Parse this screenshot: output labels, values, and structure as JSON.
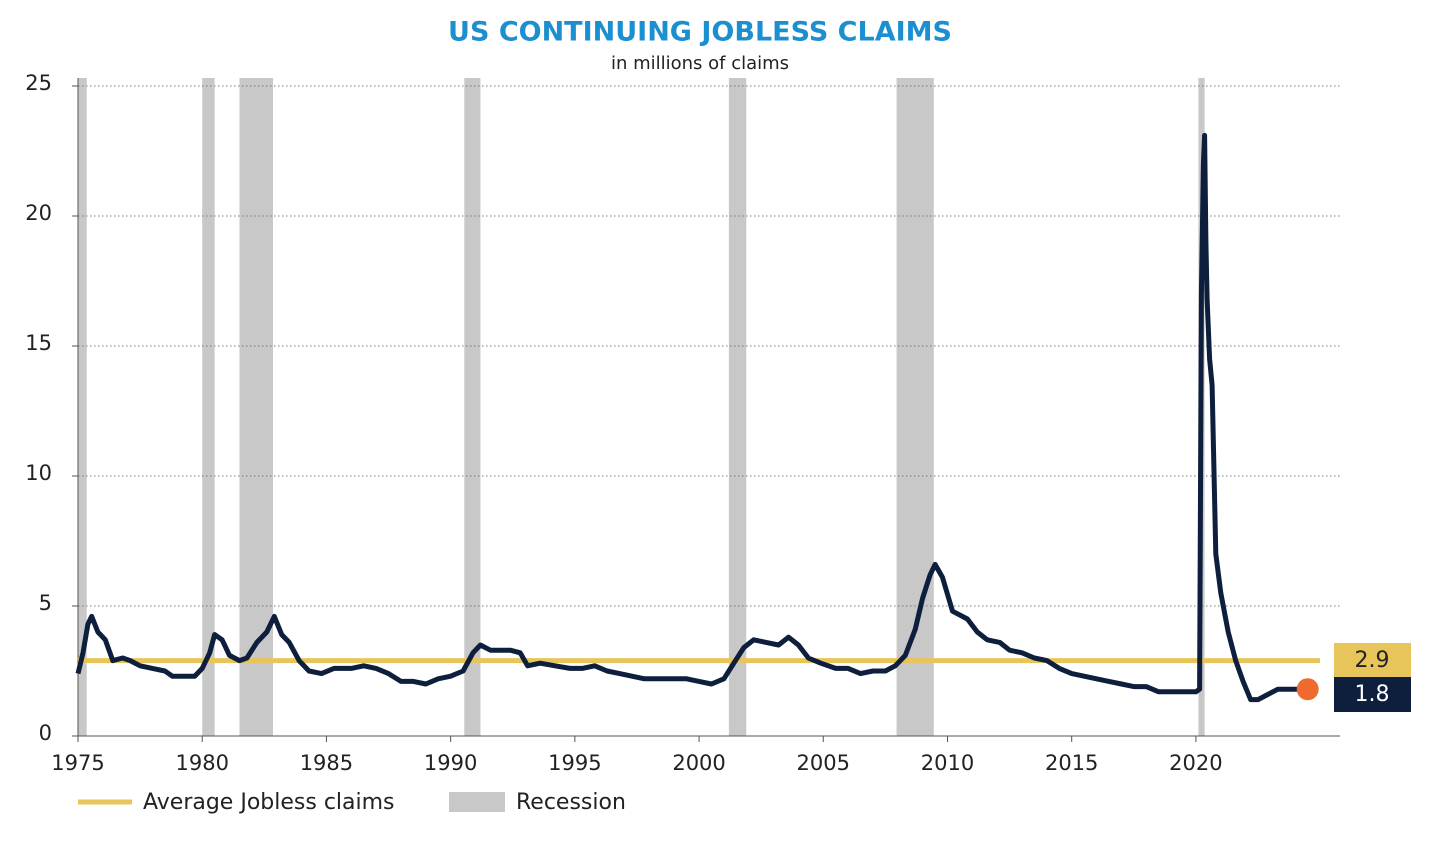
{
  "chart_data": {
    "type": "line",
    "title": "US CONTINUING JOBLESS CLAIMS",
    "subtitle": "in millions of claims",
    "color": "#0d1f3c",
    "marker_color": "#ee6a2f",
    "x": [
      1975.0,
      1975.2,
      1975.4,
      1975.55,
      1975.8,
      1976.1,
      1976.4,
      1976.8,
      1977.1,
      1977.5,
      1978.0,
      1978.5,
      1978.8,
      1979.3,
      1979.7,
      1980.0,
      1980.3,
      1980.5,
      1980.8,
      1981.1,
      1981.5,
      1981.8,
      1982.2,
      1982.6,
      1982.9,
      1983.2,
      1983.5,
      1983.9,
      1984.3,
      1984.8,
      1985.3,
      1986.0,
      1986.5,
      1987.0,
      1987.5,
      1988.0,
      1988.5,
      1989.0,
      1989.5,
      1990.0,
      1990.5,
      1990.9,
      1991.2,
      1991.6,
      1992.0,
      1992.4,
      1992.8,
      1993.1,
      1993.6,
      1994.2,
      1994.8,
      1995.3,
      1995.8,
      1996.3,
      1996.8,
      1997.3,
      1997.8,
      1998.5,
      1999.0,
      1999.5,
      2000.0,
      2000.5,
      2001.0,
      2001.4,
      2001.8,
      2002.2,
      2002.7,
      2003.2,
      2003.6,
      2004.0,
      2004.4,
      2004.9,
      2005.5,
      2006.0,
      2006.5,
      2007.0,
      2007.5,
      2007.9,
      2008.3,
      2008.7,
      2009.0,
      2009.3,
      2009.5,
      2009.8,
      2010.2,
      2010.8,
      2011.2,
      2011.6,
      2012.1,
      2012.5,
      2013.0,
      2013.5,
      2014.0,
      2014.5,
      2015.0,
      2015.5,
      2016.0,
      2016.5,
      2017.0,
      2017.5,
      2018.0,
      2018.5,
      2019.0,
      2019.5,
      2020.0,
      2020.15,
      2020.22,
      2020.3,
      2020.35,
      2020.4,
      2020.45,
      2020.55,
      2020.65,
      2020.8,
      2021.0,
      2021.3,
      2021.6,
      2021.9,
      2022.2,
      2022.5,
      2022.9,
      2023.3,
      2023.8,
      2024.3,
      2024.5
    ],
    "values": [
      2.4,
      3.2,
      4.3,
      4.6,
      4.0,
      3.7,
      2.9,
      3.0,
      2.9,
      2.7,
      2.6,
      2.5,
      2.3,
      2.3,
      2.3,
      2.6,
      3.2,
      3.9,
      3.7,
      3.1,
      2.9,
      3.0,
      3.6,
      4.0,
      4.6,
      3.9,
      3.6,
      2.9,
      2.5,
      2.4,
      2.6,
      2.6,
      2.7,
      2.6,
      2.4,
      2.1,
      2.1,
      2.0,
      2.2,
      2.3,
      2.5,
      3.2,
      3.5,
      3.3,
      3.3,
      3.3,
      3.2,
      2.7,
      2.8,
      2.7,
      2.6,
      2.6,
      2.7,
      2.5,
      2.4,
      2.3,
      2.2,
      2.2,
      2.2,
      2.2,
      2.1,
      2.0,
      2.2,
      2.8,
      3.4,
      3.7,
      3.6,
      3.5,
      3.8,
      3.5,
      3.0,
      2.8,
      2.6,
      2.6,
      2.4,
      2.5,
      2.5,
      2.7,
      3.1,
      4.1,
      5.3,
      6.2,
      6.6,
      6.1,
      4.8,
      4.5,
      4.0,
      3.7,
      3.6,
      3.3,
      3.2,
      3.0,
      2.9,
      2.6,
      2.4,
      2.3,
      2.2,
      2.1,
      2.0,
      1.9,
      1.9,
      1.7,
      1.7,
      1.7,
      1.7,
      1.8,
      17,
      22,
      23.1,
      19,
      16.8,
      14.5,
      13.5,
      7.0,
      5.5,
      4.0,
      2.9,
      2.1,
      1.4,
      1.4,
      1.6,
      1.8,
      1.8,
      1.8,
      1.8
    ],
    "average": {
      "name": "Average Jobless claims",
      "value": 2.9,
      "color": "#e8c55a"
    },
    "recession": {
      "name": "Recession",
      "color": "#c8c8c8",
      "periods": [
        [
          1975.0,
          1975.35
        ],
        [
          1980.0,
          1980.5
        ],
        [
          1981.5,
          1982.85
        ],
        [
          1990.55,
          1991.2
        ],
        [
          2001.2,
          2001.9
        ],
        [
          2007.95,
          2009.45
        ],
        [
          2020.1,
          2020.35
        ]
      ]
    },
    "xlim": [
      1975,
      2025.8
    ],
    "ylim": [
      0,
      25
    ],
    "xticks": [
      1975,
      1980,
      1985,
      1990,
      1995,
      2000,
      2005,
      2010,
      2015,
      2020
    ],
    "yticks": [
      0,
      5,
      10,
      15,
      20,
      25
    ],
    "grid": true
  }
}
